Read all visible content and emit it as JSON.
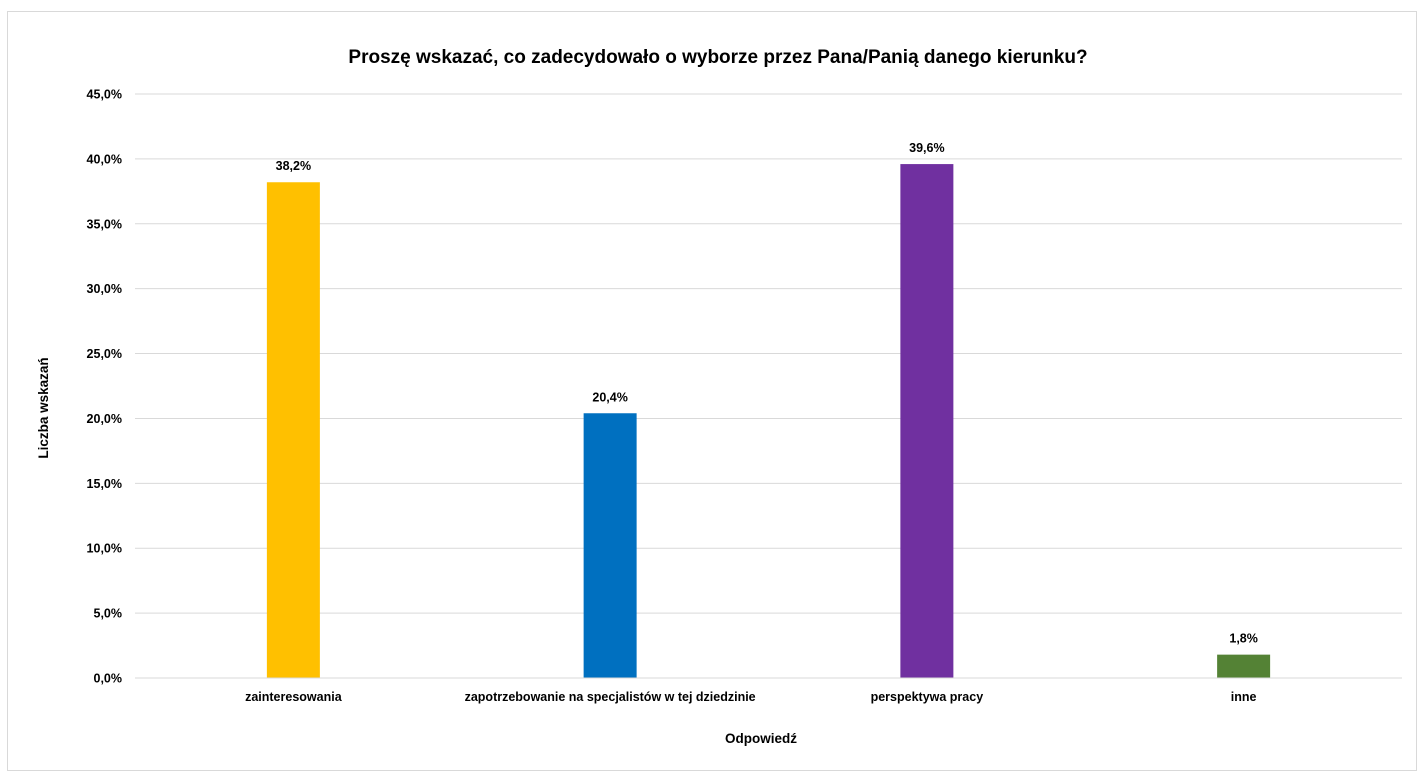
{
  "chart_data": {
    "type": "bar",
    "title": "Proszę wskazać, co zadecydowało o wyborze przez Pana/Panią  danego kierunku?",
    "xlabel": "Odpowiedź",
    "ylabel": "Liczba wskazań",
    "categories": [
      "zainteresowania",
      "zapotrzebowanie na specjalistów w tej dziedzinie",
      "perspektywa pracy",
      "inne"
    ],
    "values": [
      38.2,
      20.4,
      39.6,
      1.8
    ],
    "data_labels": [
      "38,2%",
      "20,4%",
      "39,6%",
      "1,8%"
    ],
    "colors": [
      "#FFC000",
      "#0070C0",
      "#7030A0",
      "#548235"
    ],
    "ylim": [
      0,
      45
    ],
    "yticks": [
      0,
      5,
      10,
      15,
      20,
      25,
      30,
      35,
      40,
      45
    ],
    "ytick_labels": [
      "0,0%",
      "5,0%",
      "10,0%",
      "15,0%",
      "20,0%",
      "25,0%",
      "30,0%",
      "35,0%",
      "40,0%",
      "45,0%"
    ],
    "grid": true,
    "legend": "none"
  }
}
